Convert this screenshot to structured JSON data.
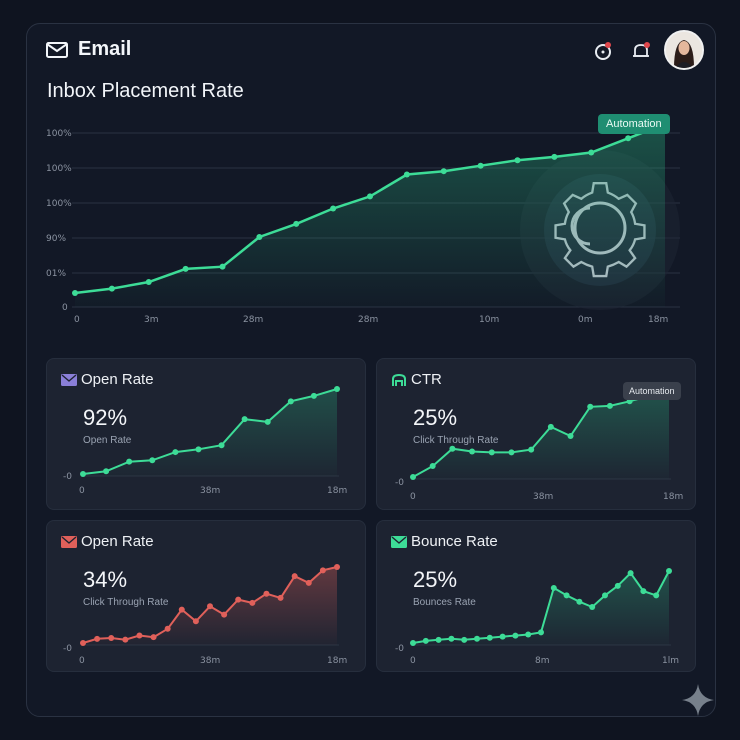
{
  "header": {
    "app_title": "Email",
    "icons": [
      "mail-icon",
      "refresh-icon",
      "bell-icon",
      "avatar"
    ],
    "notification_color": "#e0474c"
  },
  "page_title": "Inbox Placement Rate",
  "main_badge": "Automation",
  "colors": {
    "green": "#3ddc97",
    "red": "#e0605a",
    "purple": "#8a7fd8"
  },
  "chart_data": [
    {
      "type": "line",
      "title": "Inbox Placement Rate",
      "y_tick_labels": [
        "100%",
        "100%",
        "100%",
        "90%",
        "01%",
        "0"
      ],
      "x_tick_labels": [
        "0",
        "3m",
        "28m",
        "28m",
        "10m",
        "0m",
        "18m"
      ],
      "values": [
        0,
        1,
        2,
        3,
        4,
        5,
        6,
        7,
        8,
        9,
        10,
        11,
        12,
        13,
        14,
        15,
        16
      ],
      "area_fill": true
    },
    {
      "type": "line",
      "title": "Open Rate",
      "value_label": "92%",
      "subtitle": "Open Rate",
      "y_tick_labels": [
        "-0"
      ],
      "x_tick_labels": [
        "0",
        "38m",
        "18m"
      ],
      "values": [
        0,
        1,
        2,
        3,
        4,
        5,
        6,
        7,
        8,
        9,
        10,
        11
      ],
      "area_fill": true
    },
    {
      "type": "line",
      "title": "CTR",
      "value_label": "25%",
      "subtitle": "Click Through Rate",
      "badge": "Automation",
      "y_tick_labels": [
        "-0"
      ],
      "x_tick_labels": [
        "0",
        "38m",
        "18m"
      ],
      "values": [
        0,
        1,
        2,
        3,
        4,
        5,
        6,
        7,
        8,
        9,
        10,
        11,
        12,
        13
      ],
      "area_fill": true
    },
    {
      "type": "line",
      "title": "Open Rate",
      "value_label": "34%",
      "subtitle": "Click Through Rate",
      "y_tick_labels": [
        "-0"
      ],
      "x_tick_labels": [
        "0",
        "38m",
        "18m"
      ],
      "values": [
        0,
        1,
        2,
        3,
        4,
        5,
        6,
        7,
        8,
        9,
        10,
        11,
        12,
        13,
        14,
        15,
        16,
        17,
        18
      ],
      "area_fill": true
    },
    {
      "type": "line",
      "title": "Bounce Rate",
      "value_label": "25%",
      "subtitle": "Bounces Rate",
      "y_tick_labels": [
        "-0"
      ],
      "x_tick_labels": [
        "0",
        "8m",
        "1lm"
      ],
      "values": [
        0,
        1,
        2,
        3,
        4,
        5,
        6,
        7,
        8,
        9,
        10,
        11,
        12,
        13,
        14,
        15,
        16,
        17,
        18,
        19,
        20
      ],
      "area_fill": true
    }
  ],
  "main_values": [
    4,
    8,
    14,
    26,
    28,
    55,
    67,
    81,
    92,
    112,
    115,
    120,
    125,
    128,
    132,
    145,
    158
  ],
  "cards": {
    "open_rate_values": [
      10,
      12,
      19,
      20,
      26,
      28,
      31,
      50,
      48,
      63,
      67,
      72
    ],
    "ctr_values": [
      2,
      14,
      33,
      30,
      29,
      29,
      32,
      57,
      47,
      79,
      80,
      85,
      91,
      93
    ],
    "open_rate_red_values": [
      4,
      9,
      10,
      8,
      13,
      11,
      21,
      44,
      30,
      48,
      38,
      56,
      52,
      63,
      58,
      84,
      76,
      91,
      95
    ],
    "bounce_values": [
      3,
      5,
      6,
      7,
      6,
      7,
      8,
      9,
      10,
      11,
      13,
      55,
      48,
      42,
      37,
      48,
      57,
      69,
      52,
      48,
      71
    ]
  }
}
